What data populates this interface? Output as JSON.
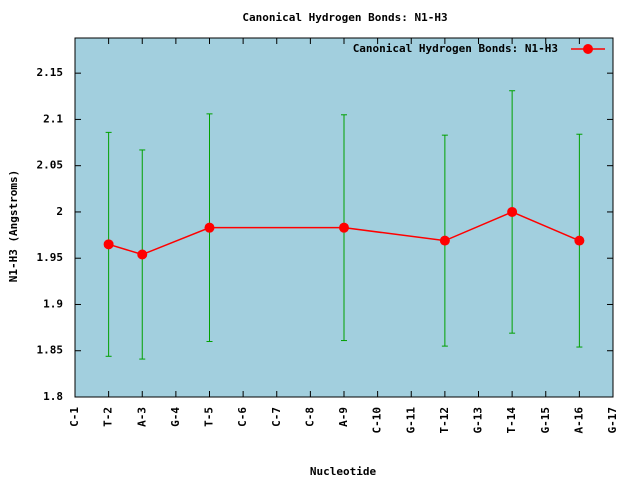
{
  "chart_data": {
    "type": "line",
    "title": "Canonical Hydrogen Bonds: N1-H3",
    "x_label": "Nucleotide",
    "y_label": "N1-H3 (Angstroms)",
    "background": "#a2cfde",
    "error_color": "#00a000",
    "x": [
      2,
      3,
      5,
      9,
      12,
      14,
      16
    ],
    "series": [
      {
        "name": "Canonical Hydrogen Bonds: N1-H3",
        "color": "#ff0000",
        "values": [
          1.965,
          1.954,
          1.983,
          1.983,
          1.969,
          2.0,
          1.969
        ],
        "errors": [
          0.121,
          0.113,
          0.123,
          0.122,
          0.114,
          0.131,
          0.115
        ]
      }
    ],
    "xlim": [
      1,
      17
    ],
    "xticks": [
      {
        "value": 1,
        "label": "C-1"
      },
      {
        "value": 2,
        "label": "T-2"
      },
      {
        "value": 3,
        "label": "A-3"
      },
      {
        "value": 4,
        "label": "G-4"
      },
      {
        "value": 5,
        "label": "T-5"
      },
      {
        "value": 6,
        "label": "C-6"
      },
      {
        "value": 7,
        "label": "C-7"
      },
      {
        "value": 8,
        "label": "C-8"
      },
      {
        "value": 9,
        "label": "A-9"
      },
      {
        "value": 10,
        "label": "C-10"
      },
      {
        "value": 11,
        "label": "G-11"
      },
      {
        "value": 12,
        "label": "T-12"
      },
      {
        "value": 13,
        "label": "G-13"
      },
      {
        "value": 14,
        "label": "T-14"
      },
      {
        "value": 15,
        "label": "G-15"
      },
      {
        "value": 16,
        "label": "A-16"
      },
      {
        "value": 17,
        "label": "G-17"
      }
    ],
    "ylim": [
      1.8,
      2.188
    ],
    "yticks": [
      1.8,
      1.85,
      1.9,
      1.95,
      2,
      2.05,
      2.1,
      2.15
    ],
    "legend": "top-right"
  }
}
